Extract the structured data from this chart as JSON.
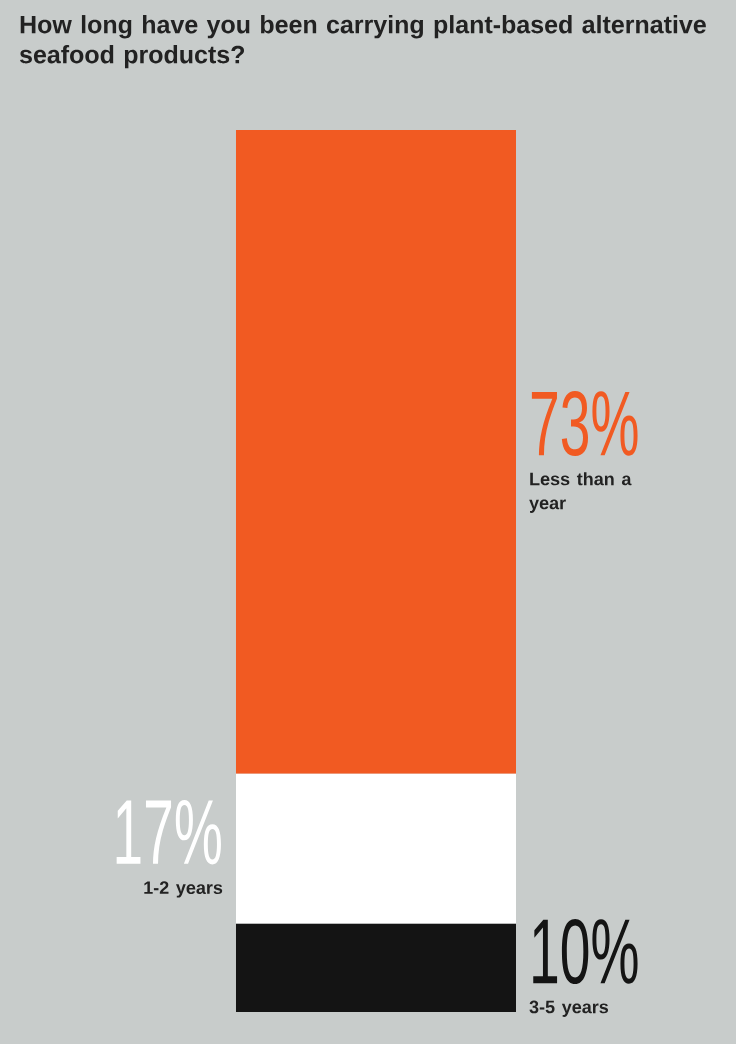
{
  "chart_data": {
    "type": "bar",
    "stacked": true,
    "title": "How long have you been carrying plant-based alternative seafood products?",
    "categories": [
      null
    ],
    "series": [
      {
        "name": "3-5 years",
        "color": "#141414",
        "values": [
          10
        ],
        "value_labels": [
          "10%"
        ]
      },
      {
        "name": "1-2 years",
        "color": "#ffffff",
        "values": [
          17
        ],
        "value_labels": [
          "17%"
        ]
      },
      {
        "name": "Less than a year",
        "color": "#f15a22",
        "values": [
          73
        ],
        "value_labels": [
          "73%"
        ]
      }
    ]
  }
}
